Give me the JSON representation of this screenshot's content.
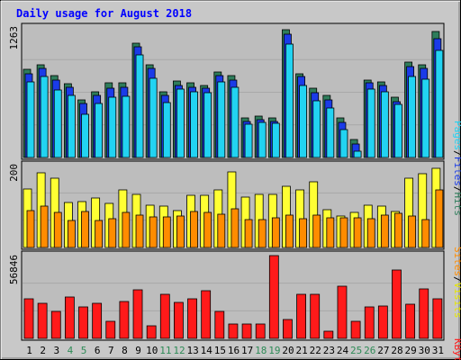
{
  "title": "Daily usage for August 2018",
  "colors": {
    "background": "#c8c8c8",
    "plot_bg": "#bdbdbd",
    "title": "#0000ff",
    "hits": "#2e7d5b",
    "files": "#1a3be8",
    "pages": "#22d3f2",
    "visits": "#ffff33",
    "sites": "#ff8c00",
    "kbytes": "#ff1a1a",
    "weekend_label": "#2e8b57",
    "weekday_label": "#000000"
  },
  "chart_data": [
    {
      "type": "bar",
      "title": "Daily usage for August 2018",
      "categories": [
        "1",
        "2",
        "3",
        "4",
        "5",
        "6",
        "7",
        "8",
        "9",
        "10",
        "11",
        "12",
        "13",
        "14",
        "15",
        "16",
        "17",
        "18",
        "19",
        "20",
        "21",
        "22",
        "23",
        "24",
        "25",
        "26",
        "27",
        "28",
        "29",
        "30",
        "31"
      ],
      "weekend_days": [
        "4",
        "5",
        "11",
        "12",
        "18",
        "19",
        "25",
        "26"
      ],
      "ymax_label": "1263",
      "ylim": [
        0,
        1263
      ],
      "right_label_parts": [
        "Pages",
        "/",
        "Files",
        "/",
        "Hits"
      ],
      "series": [
        {
          "name": "Hits",
          "values": [
            850,
            900,
            790,
            710,
            560,
            640,
            720,
            720,
            1110,
            900,
            640,
            740,
            720,
            700,
            830,
            790,
            380,
            400,
            380,
            1240,
            810,
            670,
            600,
            380,
            170,
            750,
            730,
            580,
            920,
            900,
            1220
          ]
        },
        {
          "name": "Files",
          "values": [
            810,
            860,
            750,
            680,
            520,
            600,
            670,
            680,
            1070,
            860,
            600,
            700,
            680,
            670,
            790,
            750,
            350,
            370,
            350,
            1190,
            780,
            630,
            560,
            340,
            130,
            720,
            700,
            540,
            880,
            860,
            1150
          ]
        },
        {
          "name": "Pages",
          "values": [
            730,
            780,
            650,
            600,
            420,
            520,
            580,
            590,
            990,
            770,
            530,
            660,
            640,
            630,
            730,
            680,
            320,
            340,
            330,
            1100,
            700,
            550,
            480,
            270,
            60,
            660,
            640,
            510,
            780,
            760,
            1040
          ]
        }
      ]
    },
    {
      "type": "bar",
      "categories": [
        "1",
        "2",
        "3",
        "4",
        "5",
        "6",
        "7",
        "8",
        "9",
        "10",
        "11",
        "12",
        "13",
        "14",
        "15",
        "16",
        "17",
        "18",
        "19",
        "20",
        "21",
        "22",
        "23",
        "24",
        "25",
        "26",
        "27",
        "28",
        "29",
        "30",
        "31"
      ],
      "ymax_label": "200",
      "ylim": [
        0,
        200
      ],
      "right_label_parts": [
        "Sites",
        "/",
        "Visits"
      ],
      "series": [
        {
          "name": "Visits",
          "values": [
            143,
            183,
            170,
            110,
            113,
            120,
            108,
            140,
            130,
            103,
            100,
            91,
            128,
            127,
            140,
            184,
            122,
            129,
            130,
            150,
            140,
            160,
            92,
            77,
            85,
            103,
            102,
            88,
            170,
            180,
            194
          ]
        },
        {
          "name": "Sites",
          "values": [
            90,
            100,
            85,
            65,
            87,
            67,
            71,
            86,
            80,
            75,
            75,
            78,
            88,
            85,
            82,
            95,
            69,
            68,
            72,
            80,
            70,
            79,
            72,
            72,
            73,
            70,
            80,
            83,
            78,
            69,
            140
          ]
        }
      ]
    },
    {
      "type": "bar",
      "categories": [
        "1",
        "2",
        "3",
        "4",
        "5",
        "6",
        "7",
        "8",
        "9",
        "10",
        "11",
        "12",
        "13",
        "14",
        "15",
        "16",
        "17",
        "18",
        "19",
        "20",
        "21",
        "22",
        "23",
        "24",
        "25",
        "26",
        "27",
        "28",
        "29",
        "30",
        "31"
      ],
      "ymax_label": "56846",
      "ylim": [
        0,
        56846
      ],
      "right_label_parts": [
        "KBytes"
      ],
      "series": [
        {
          "name": "KBytes",
          "values": [
            27000,
            23800,
            18400,
            28300,
            21600,
            24100,
            11500,
            25200,
            33100,
            8500,
            30400,
            24800,
            27200,
            32500,
            18600,
            10000,
            10000,
            10000,
            56800,
            13000,
            30200,
            30400,
            5000,
            36100,
            11600,
            21600,
            22400,
            47000,
            23700,
            34000,
            27000
          ]
        }
      ]
    }
  ]
}
